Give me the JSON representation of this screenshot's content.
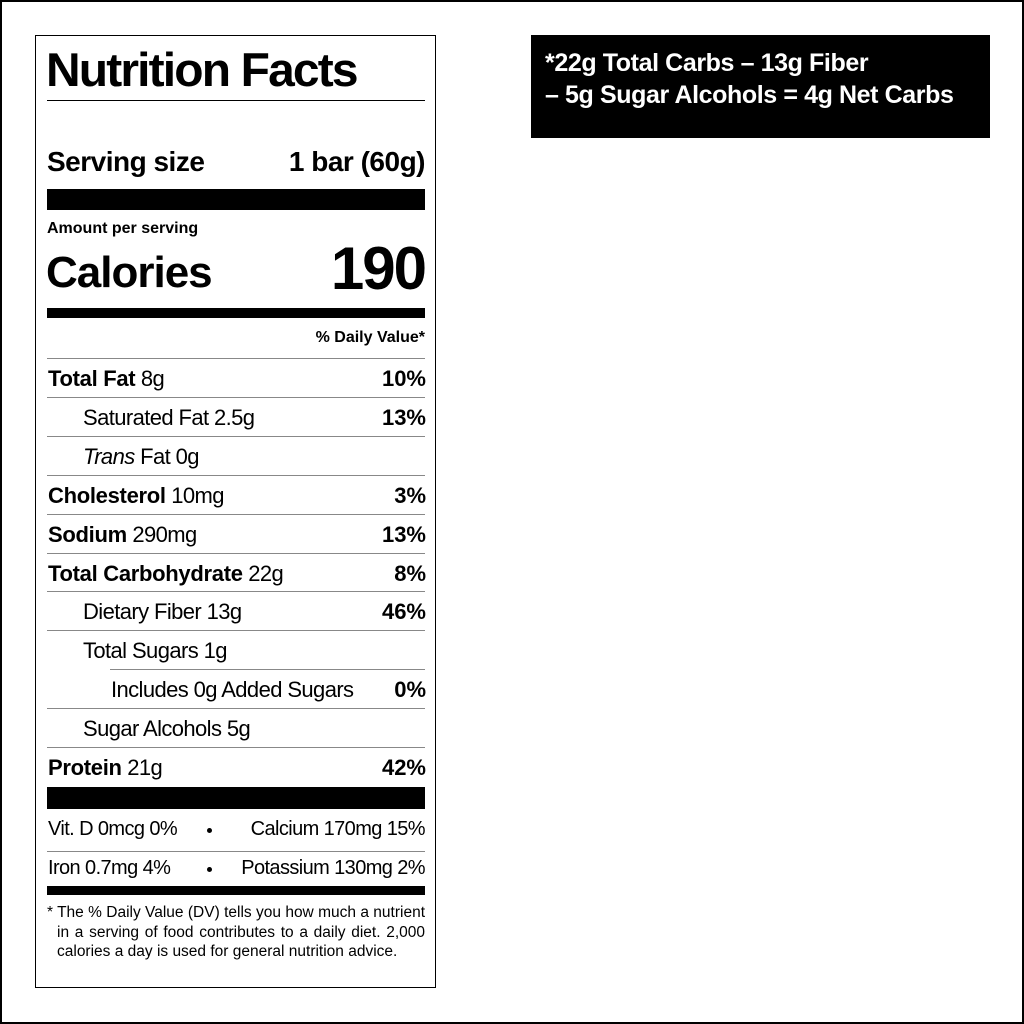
{
  "title": "Nutrition Facts",
  "serving": {
    "label": "Serving size",
    "value": "1 bar (60g)"
  },
  "amount_per_serving": "Amount per serving",
  "calories": {
    "label": "Calories",
    "value": 190
  },
  "daily_value_header": "% Daily Value*",
  "nutrients": [
    {
      "name": "Total Fat",
      "amount": "8g",
      "dv": "10%",
      "bold": true,
      "level": 0
    },
    {
      "name": "Saturated Fat",
      "amount": "2.5g",
      "dv": "13%",
      "bold": false,
      "level": 1
    },
    {
      "name_italic": "Trans",
      "name": "Fat",
      "amount": "0g",
      "bold": false,
      "level": 1
    },
    {
      "name": "Cholesterol",
      "amount": "10mg",
      "dv": "3%",
      "bold": true,
      "level": 0
    },
    {
      "name": "Sodium",
      "amount": "290mg",
      "dv": "13%",
      "bold": true,
      "level": 0
    },
    {
      "name": "Total Carbohydrate",
      "amount": "22g",
      "dv": "8%",
      "bold": true,
      "level": 0
    },
    {
      "name": "Dietary Fiber",
      "amount": "13g",
      "dv": "46%",
      "bold": false,
      "level": 1
    },
    {
      "name": "Total Sugars",
      "amount": "1g",
      "bold": false,
      "level": 1
    },
    {
      "name": "Includes 0g Added Sugars",
      "dv": "0%",
      "bold": false,
      "level": 2
    },
    {
      "name": "Sugar Alcohols",
      "amount": "5g",
      "bold": false,
      "level": 1
    },
    {
      "name": "Protein",
      "amount": "21g",
      "dv": "42%",
      "bold": true,
      "level": 0
    }
  ],
  "micronutrients": [
    [
      {
        "name": "Vit. D",
        "amount": "0mcg",
        "dv": "0%"
      },
      {
        "name": "Calcium",
        "amount": "170mg",
        "dv": "15%"
      }
    ],
    [
      {
        "name": "Iron",
        "amount": "0.7mg",
        "dv": "4%"
      },
      {
        "name": "Potassium",
        "amount": "130mg",
        "dv": "2%"
      }
    ]
  ],
  "footnote": "* The % Daily Value (DV) tells you how much a nutrient in a serving of food contributes to a daily diet. 2,000 calories a day is used for general nutrition advice.",
  "net_carbs_note": [
    "*22g Total Carbs – 13g Fiber",
    "– 5g Sugar Alcohols = 4g Net Carbs"
  ]
}
